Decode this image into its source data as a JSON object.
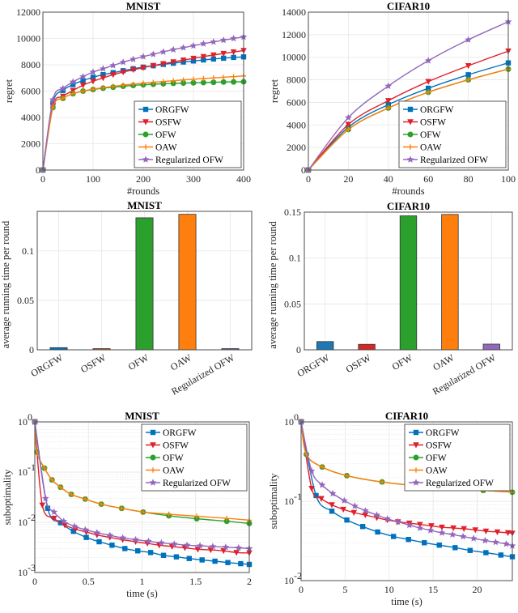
{
  "colors": {
    "ORGFW": "#0072BD",
    "OSFW": "#D95319",
    "OSFW_line": "#E0202A",
    "OFW": "#2CA02C",
    "OAW": "#FF7F0E",
    "Regularized OFW": "#9467BD"
  },
  "legend": [
    "ORGFW",
    "OSFW",
    "OFW",
    "OAW",
    "Regularized OFW"
  ],
  "chart_data": [
    {
      "id": "regret-mnist",
      "type": "line",
      "title": "MNIST",
      "xlabel": "#rounds",
      "ylabel": "regret",
      "xlim": [
        0,
        400
      ],
      "ylim": [
        0,
        12000
      ],
      "xticks": [
        0,
        100,
        200,
        300,
        400
      ],
      "yticks": [
        0,
        2000,
        4000,
        6000,
        8000,
        10000,
        12000
      ],
      "yscale": "linear",
      "grid": true,
      "legend_position": "bottom-right",
      "x": [
        0,
        20,
        40,
        60,
        80,
        100,
        120,
        140,
        160,
        180,
        200,
        220,
        240,
        260,
        280,
        300,
        320,
        340,
        360,
        380,
        400
      ],
      "series": [
        {
          "name": "ORGFW",
          "marker": "square",
          "values": [
            0,
            5100,
            6050,
            6500,
            6800,
            7050,
            7250,
            7400,
            7550,
            7700,
            7820,
            7930,
            8030,
            8120,
            8210,
            8290,
            8370,
            8440,
            8500,
            8560,
            8600
          ]
        },
        {
          "name": "OSFW",
          "marker": "triangle-down",
          "values": [
            0,
            4900,
            5600,
            6050,
            6450,
            6750,
            7000,
            7250,
            7450,
            7620,
            7780,
            7940,
            8080,
            8220,
            8360,
            8490,
            8620,
            8740,
            8860,
            8970,
            9080
          ]
        },
        {
          "name": "OFW",
          "marker": "circle",
          "values": [
            0,
            4750,
            5450,
            5800,
            6000,
            6120,
            6220,
            6300,
            6370,
            6430,
            6480,
            6520,
            6560,
            6590,
            6610,
            6630,
            6650,
            6670,
            6690,
            6700,
            6710
          ]
        },
        {
          "name": "OAW",
          "marker": "plus",
          "values": [
            0,
            4750,
            5450,
            5800,
            6000,
            6140,
            6260,
            6360,
            6450,
            6530,
            6600,
            6670,
            6730,
            6790,
            6850,
            6900,
            6950,
            7000,
            7050,
            7100,
            7150
          ]
        },
        {
          "name": "Regularized OFW",
          "marker": "star",
          "values": [
            0,
            5350,
            6200,
            6700,
            7100,
            7450,
            7700,
            7950,
            8200,
            8420,
            8620,
            8800,
            8980,
            9150,
            9300,
            9450,
            9600,
            9740,
            9870,
            10000,
            10120
          ]
        }
      ]
    },
    {
      "id": "regret-cifar10",
      "type": "line",
      "title": "CIFAR10",
      "xlabel": "#rounds",
      "ylabel": "regret",
      "xlim": [
        0,
        100
      ],
      "ylim": [
        0,
        14000
      ],
      "xticks": [
        0,
        20,
        40,
        60,
        80,
        100
      ],
      "yticks": [
        0,
        2000,
        4000,
        6000,
        8000,
        10000,
        12000,
        14000
      ],
      "yscale": "linear",
      "grid": true,
      "legend_position": "bottom-right",
      "x": [
        0,
        20,
        40,
        60,
        80,
        100
      ],
      "series": [
        {
          "name": "ORGFW",
          "marker": "square",
          "values": [
            0,
            3800,
            5800,
            7250,
            8450,
            9500
          ]
        },
        {
          "name": "OSFW",
          "marker": "triangle-down",
          "values": [
            0,
            4050,
            6150,
            7850,
            9250,
            10550
          ]
        },
        {
          "name": "OFW",
          "marker": "circle",
          "values": [
            0,
            3600,
            5500,
            6900,
            8000,
            8950
          ]
        },
        {
          "name": "OAW",
          "marker": "plus",
          "values": [
            0,
            3600,
            5500,
            6900,
            8000,
            8950
          ]
        },
        {
          "name": "Regularized OFW",
          "marker": "star",
          "values": [
            0,
            4650,
            7450,
            9700,
            11550,
            13150
          ]
        }
      ]
    },
    {
      "id": "time-mnist",
      "type": "bar",
      "title": "MNIST",
      "xlabel": "",
      "ylabel": "average running time per round",
      "ylim": [
        0,
        0.14
      ],
      "yticks": [
        0,
        0.05,
        0.1
      ],
      "ytick_labels": [
        "0",
        "0.05",
        "0.1"
      ],
      "grid": true,
      "categories": [
        "ORGFW",
        "OSFW",
        "OFW",
        "OAW",
        "Regularized OFW"
      ],
      "values": [
        0.0022,
        0.0012,
        0.1335,
        0.137,
        0.0012
      ],
      "bar_colors": [
        "#0072BD",
        "#D95319",
        "#2CA02C",
        "#FF7F0E",
        "#7E57A8"
      ]
    },
    {
      "id": "time-cifar10",
      "type": "bar",
      "title": "CIFAR10",
      "xlabel": "",
      "ylabel": "average running time per round",
      "ylim": [
        0,
        0.15
      ],
      "yticks": [
        0,
        0.05,
        0.1,
        0.15
      ],
      "ytick_labels": [
        "0",
        "0.05",
        "0.1",
        "0.15"
      ],
      "grid": true,
      "categories": [
        "ORGFW",
        "OSFW",
        "OFW",
        "OAW",
        "Regularized OFW"
      ],
      "values": [
        0.009,
        0.006,
        0.146,
        0.1475,
        0.0062
      ],
      "bar_colors": [
        "#1F77B4",
        "#D62728",
        "#2CA02C",
        "#FF7F0E",
        "#9467BD"
      ]
    },
    {
      "id": "subopt-mnist",
      "type": "line",
      "title": "MNIST",
      "xlabel": "time (s)",
      "ylabel": "suboptimality",
      "xlim": [
        0,
        2
      ],
      "ylim": [
        0.001,
        1
      ],
      "xticks": [
        0,
        0.5,
        1,
        1.5,
        2
      ],
      "yticks_exp": [
        -3,
        -2,
        -1,
        0
      ],
      "yscale": "log",
      "grid": true,
      "legend_position": "top-right",
      "series": [
        {
          "name": "ORGFW",
          "marker": "square",
          "x": [
            0,
            0.12,
            0.24,
            0.36,
            0.48,
            0.6,
            0.72,
            0.84,
            0.96,
            1.08,
            1.2,
            1.32,
            1.44,
            1.56,
            1.68,
            1.8,
            1.92,
            2.0
          ],
          "values": [
            1,
            0.019,
            0.0098,
            0.0066,
            0.005,
            0.0041,
            0.0035,
            0.003,
            0.0027,
            0.0025,
            0.0022,
            0.00205,
            0.0019,
            0.00178,
            0.00168,
            0.00158,
            0.0015,
            0.00145
          ]
        },
        {
          "name": "OSFW",
          "marker": "triangle-down",
          "x": [
            0,
            0.07,
            0.18,
            0.28,
            0.38,
            0.48,
            0.58,
            0.7,
            0.82,
            0.94,
            1.05,
            1.16,
            1.28,
            1.4,
            1.52,
            1.64,
            1.76,
            1.88,
            2.0
          ],
          "values": [
            1,
            0.022,
            0.012,
            0.0088,
            0.0073,
            0.0064,
            0.0056,
            0.005,
            0.0045,
            0.0041,
            0.0038,
            0.0035,
            0.0033,
            0.0031,
            0.0029,
            0.00282,
            0.0027,
            0.0025,
            0.00245
          ]
        },
        {
          "name": "OFW",
          "marker": "circle",
          "x": [
            0,
            0.02,
            0.09,
            0.16,
            0.24,
            0.34,
            0.47,
            0.62,
            0.81,
            1.01,
            1.25,
            1.51,
            1.79,
            2.0
          ],
          "values": [
            1,
            0.25,
            0.12,
            0.07,
            0.05,
            0.036,
            0.029,
            0.023,
            0.019,
            0.016,
            0.0135,
            0.0118,
            0.0105,
            0.0095
          ]
        },
        {
          "name": "OAW",
          "marker": "plus",
          "x": [
            0,
            0.02,
            0.09,
            0.16,
            0.24,
            0.34,
            0.47,
            0.62,
            0.81,
            1.01,
            1.25,
            1.51,
            1.79,
            2.0
          ],
          "values": [
            1,
            0.25,
            0.12,
            0.07,
            0.05,
            0.036,
            0.029,
            0.023,
            0.019,
            0.016,
            0.0145,
            0.0132,
            0.012,
            0.011
          ]
        },
        {
          "name": "Regularized OFW",
          "marker": "star",
          "x": [
            0,
            0.1,
            0.18,
            0.27,
            0.37,
            0.47,
            0.58,
            0.7,
            0.82,
            0.94,
            1.06,
            1.18,
            1.3,
            1.42,
            1.54,
            1.66,
            1.78,
            1.9,
            2.0
          ],
          "values": [
            1,
            0.03,
            0.016,
            0.0105,
            0.0083,
            0.0071,
            0.0062,
            0.0055,
            0.0049,
            0.0045,
            0.0042,
            0.0039,
            0.0037,
            0.0035,
            0.0034,
            0.0033,
            0.0032,
            0.0031,
            0.003
          ]
        }
      ]
    },
    {
      "id": "subopt-cifar10",
      "type": "line",
      "title": "CIFAR10",
      "xlabel": "time (s)",
      "ylabel": "suboptimality",
      "xlim": [
        0,
        24
      ],
      "ylim": [
        0.01,
        1
      ],
      "xticks": [
        0,
        5,
        10,
        15,
        20
      ],
      "yticks_exp": [
        -2,
        -1,
        0
      ],
      "yscale": "log",
      "grid": true,
      "legend_position": "top-right",
      "series": [
        {
          "name": "ORGFW",
          "marker": "square",
          "x": [
            0,
            1.7,
            3.5,
            5.2,
            7.0,
            8.7,
            10.5,
            12.2,
            14.0,
            15.7,
            17.5,
            19.2,
            21.0,
            22.7,
            24
          ],
          "values": [
            1,
            0.118,
            0.075,
            0.058,
            0.048,
            0.041,
            0.036,
            0.033,
            0.03,
            0.028,
            0.026,
            0.024,
            0.0225,
            0.021,
            0.02
          ]
        },
        {
          "name": "OSFW",
          "marker": "triangle-down",
          "x": [
            0,
            1.2,
            2.3,
            3.5,
            4.8,
            6.0,
            7.3,
            8.6,
            9.8,
            11.0,
            12.3,
            13.5,
            14.8,
            16.0,
            17.3,
            18.5,
            19.8,
            21.0,
            22.3,
            23.5,
            24
          ],
          "values": [
            1,
            0.145,
            0.108,
            0.09,
            0.079,
            0.072,
            0.067,
            0.062,
            0.058,
            0.055,
            0.053,
            0.051,
            0.049,
            0.047,
            0.046,
            0.045,
            0.0435,
            0.042,
            0.041,
            0.04,
            0.0395
          ]
        },
        {
          "name": "OFW",
          "marker": "circle",
          "x": [
            0,
            0.6,
            2.4,
            5.2,
            9.2,
            14.4,
            20.7,
            24
          ],
          "values": [
            1,
            0.39,
            0.27,
            0.21,
            0.175,
            0.152,
            0.137,
            0.13
          ]
        },
        {
          "name": "OAW",
          "marker": "plus",
          "x": [
            0,
            0.6,
            2.4,
            5.2,
            9.2,
            14.4,
            20.7,
            24
          ],
          "values": [
            1,
            0.39,
            0.27,
            0.21,
            0.175,
            0.152,
            0.137,
            0.13
          ]
        },
        {
          "name": "Regularized OFW",
          "marker": "star",
          "x": [
            0,
            1.2,
            2.4,
            3.6,
            4.9,
            6.1,
            7.3,
            8.6,
            9.8,
            11.0,
            12.3,
            13.5,
            14.7,
            16.0,
            17.2,
            18.4,
            19.6,
            20.9,
            22.1,
            23.3,
            24
          ],
          "values": [
            1,
            0.24,
            0.16,
            0.125,
            0.102,
            0.087,
            0.076,
            0.067,
            0.06,
            0.055,
            0.05,
            0.046,
            0.043,
            0.04,
            0.038,
            0.036,
            0.034,
            0.032,
            0.0305,
            0.029,
            0.0275
          ]
        }
      ]
    }
  ]
}
